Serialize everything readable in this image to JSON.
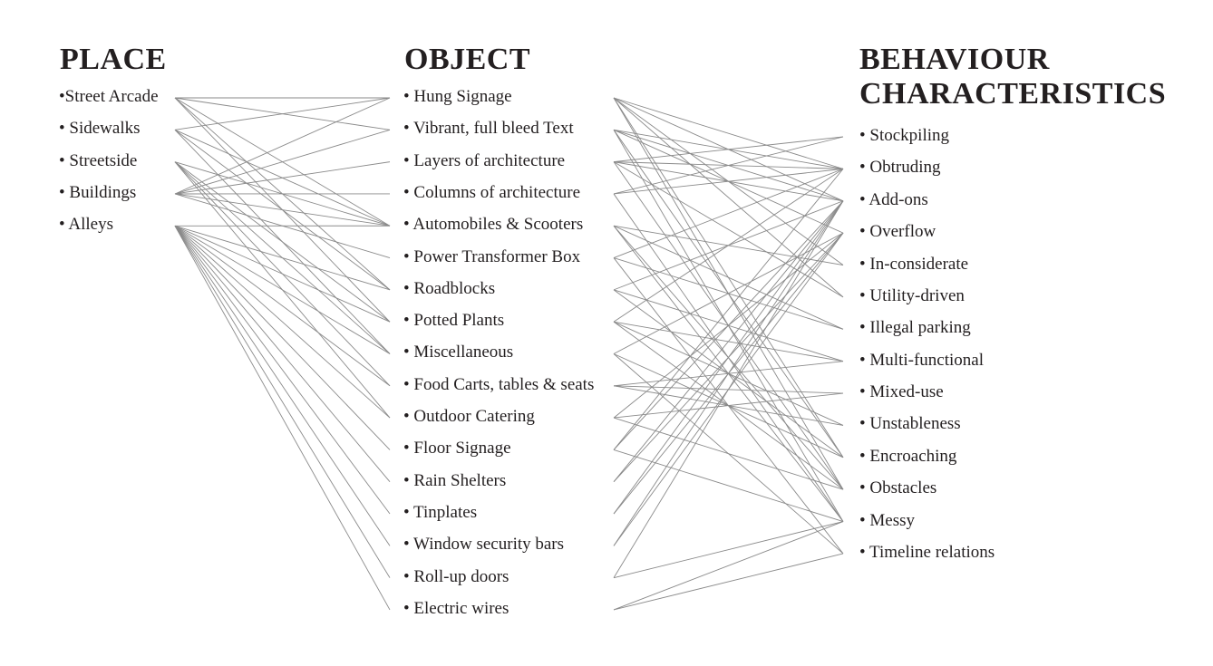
{
  "columns": {
    "place": {
      "title": "PLACE",
      "items": [
        "•Street Arcade",
        "• Sidewalks",
        "• Streetside",
        "• Buildings",
        "• Alleys"
      ]
    },
    "object": {
      "title": "OBJECT",
      "items": [
        "• Hung Signage",
        "• Vibrant, full bleed Text",
        "• Layers of architecture",
        "• Columns of architecture",
        "• Automobiles & Scooters",
        "• Power Transformer Box",
        "• Roadblocks",
        "• Potted Plants",
        "• Miscellaneous",
        "• Food Carts, tables & seats",
        "• Outdoor Catering",
        "• Floor Signage",
        "• Rain Shelters",
        "• Tinplates",
        "• Window security bars",
        "• Roll-up doors",
        "• Electric wires"
      ]
    },
    "behaviour": {
      "title_line1": "BEHAVIOUR",
      "title_line2": "CHARACTERISTICS",
      "items": [
        "• Stockpiling",
        "• Obtruding",
        "• Add-ons",
        "• Overflow",
        "• In-considerate",
        "• Utility-driven",
        "• Illegal parking",
        "• Multi-functional",
        "• Mixed-use",
        "• Unstableness",
        "• Encroaching",
        "• Obstacles",
        "• Messy",
        "• Timeline relations"
      ]
    }
  },
  "colors": {
    "text": "#231f20",
    "connector": "#8a8a8a"
  },
  "connections": {
    "place_to_object": [
      [
        0,
        0
      ],
      [
        0,
        1
      ],
      [
        0,
        4
      ],
      [
        0,
        6
      ],
      [
        0,
        7
      ],
      [
        1,
        0
      ],
      [
        1,
        4
      ],
      [
        1,
        6
      ],
      [
        1,
        8
      ],
      [
        2,
        4
      ],
      [
        2,
        7
      ],
      [
        2,
        8
      ],
      [
        2,
        9
      ],
      [
        2,
        10
      ],
      [
        3,
        0
      ],
      [
        3,
        1
      ],
      [
        3,
        2
      ],
      [
        3,
        3
      ],
      [
        3,
        4
      ],
      [
        3,
        5
      ],
      [
        4,
        4
      ],
      [
        4,
        6
      ],
      [
        4,
        7
      ],
      [
        4,
        8
      ],
      [
        4,
        9
      ],
      [
        4,
        10
      ],
      [
        4,
        11
      ],
      [
        4,
        12
      ],
      [
        4,
        13
      ],
      [
        4,
        14
      ],
      [
        4,
        15
      ],
      [
        4,
        16
      ]
    ],
    "object_to_behaviour": [
      [
        0,
        1
      ],
      [
        0,
        2
      ],
      [
        0,
        4
      ],
      [
        0,
        5
      ],
      [
        0,
        10
      ],
      [
        0,
        11
      ],
      [
        1,
        1
      ],
      [
        1,
        2
      ],
      [
        1,
        3
      ],
      [
        1,
        10
      ],
      [
        1,
        12
      ],
      [
        2,
        0
      ],
      [
        2,
        1
      ],
      [
        2,
        2
      ],
      [
        2,
        5
      ],
      [
        2,
        11
      ],
      [
        3,
        0
      ],
      [
        3,
        1
      ],
      [
        3,
        12
      ],
      [
        4,
        4
      ],
      [
        4,
        6
      ],
      [
        4,
        11
      ],
      [
        4,
        12
      ],
      [
        5,
        1
      ],
      [
        5,
        6
      ],
      [
        5,
        13
      ],
      [
        6,
        2
      ],
      [
        6,
        7
      ],
      [
        6,
        10
      ],
      [
        7,
        1
      ],
      [
        7,
        7
      ],
      [
        7,
        9
      ],
      [
        7,
        11
      ],
      [
        8,
        3
      ],
      [
        8,
        10
      ],
      [
        8,
        13
      ],
      [
        9,
        7
      ],
      [
        9,
        8
      ],
      [
        9,
        9
      ],
      [
        10,
        3
      ],
      [
        10,
        8
      ],
      [
        10,
        11
      ],
      [
        11,
        1
      ],
      [
        11,
        2
      ],
      [
        11,
        12
      ],
      [
        12,
        2
      ],
      [
        12,
        3
      ],
      [
        13,
        2
      ],
      [
        13,
        3
      ],
      [
        14,
        2
      ],
      [
        14,
        3
      ],
      [
        15,
        2
      ],
      [
        15,
        12
      ],
      [
        16,
        12
      ],
      [
        16,
        13
      ]
    ]
  }
}
